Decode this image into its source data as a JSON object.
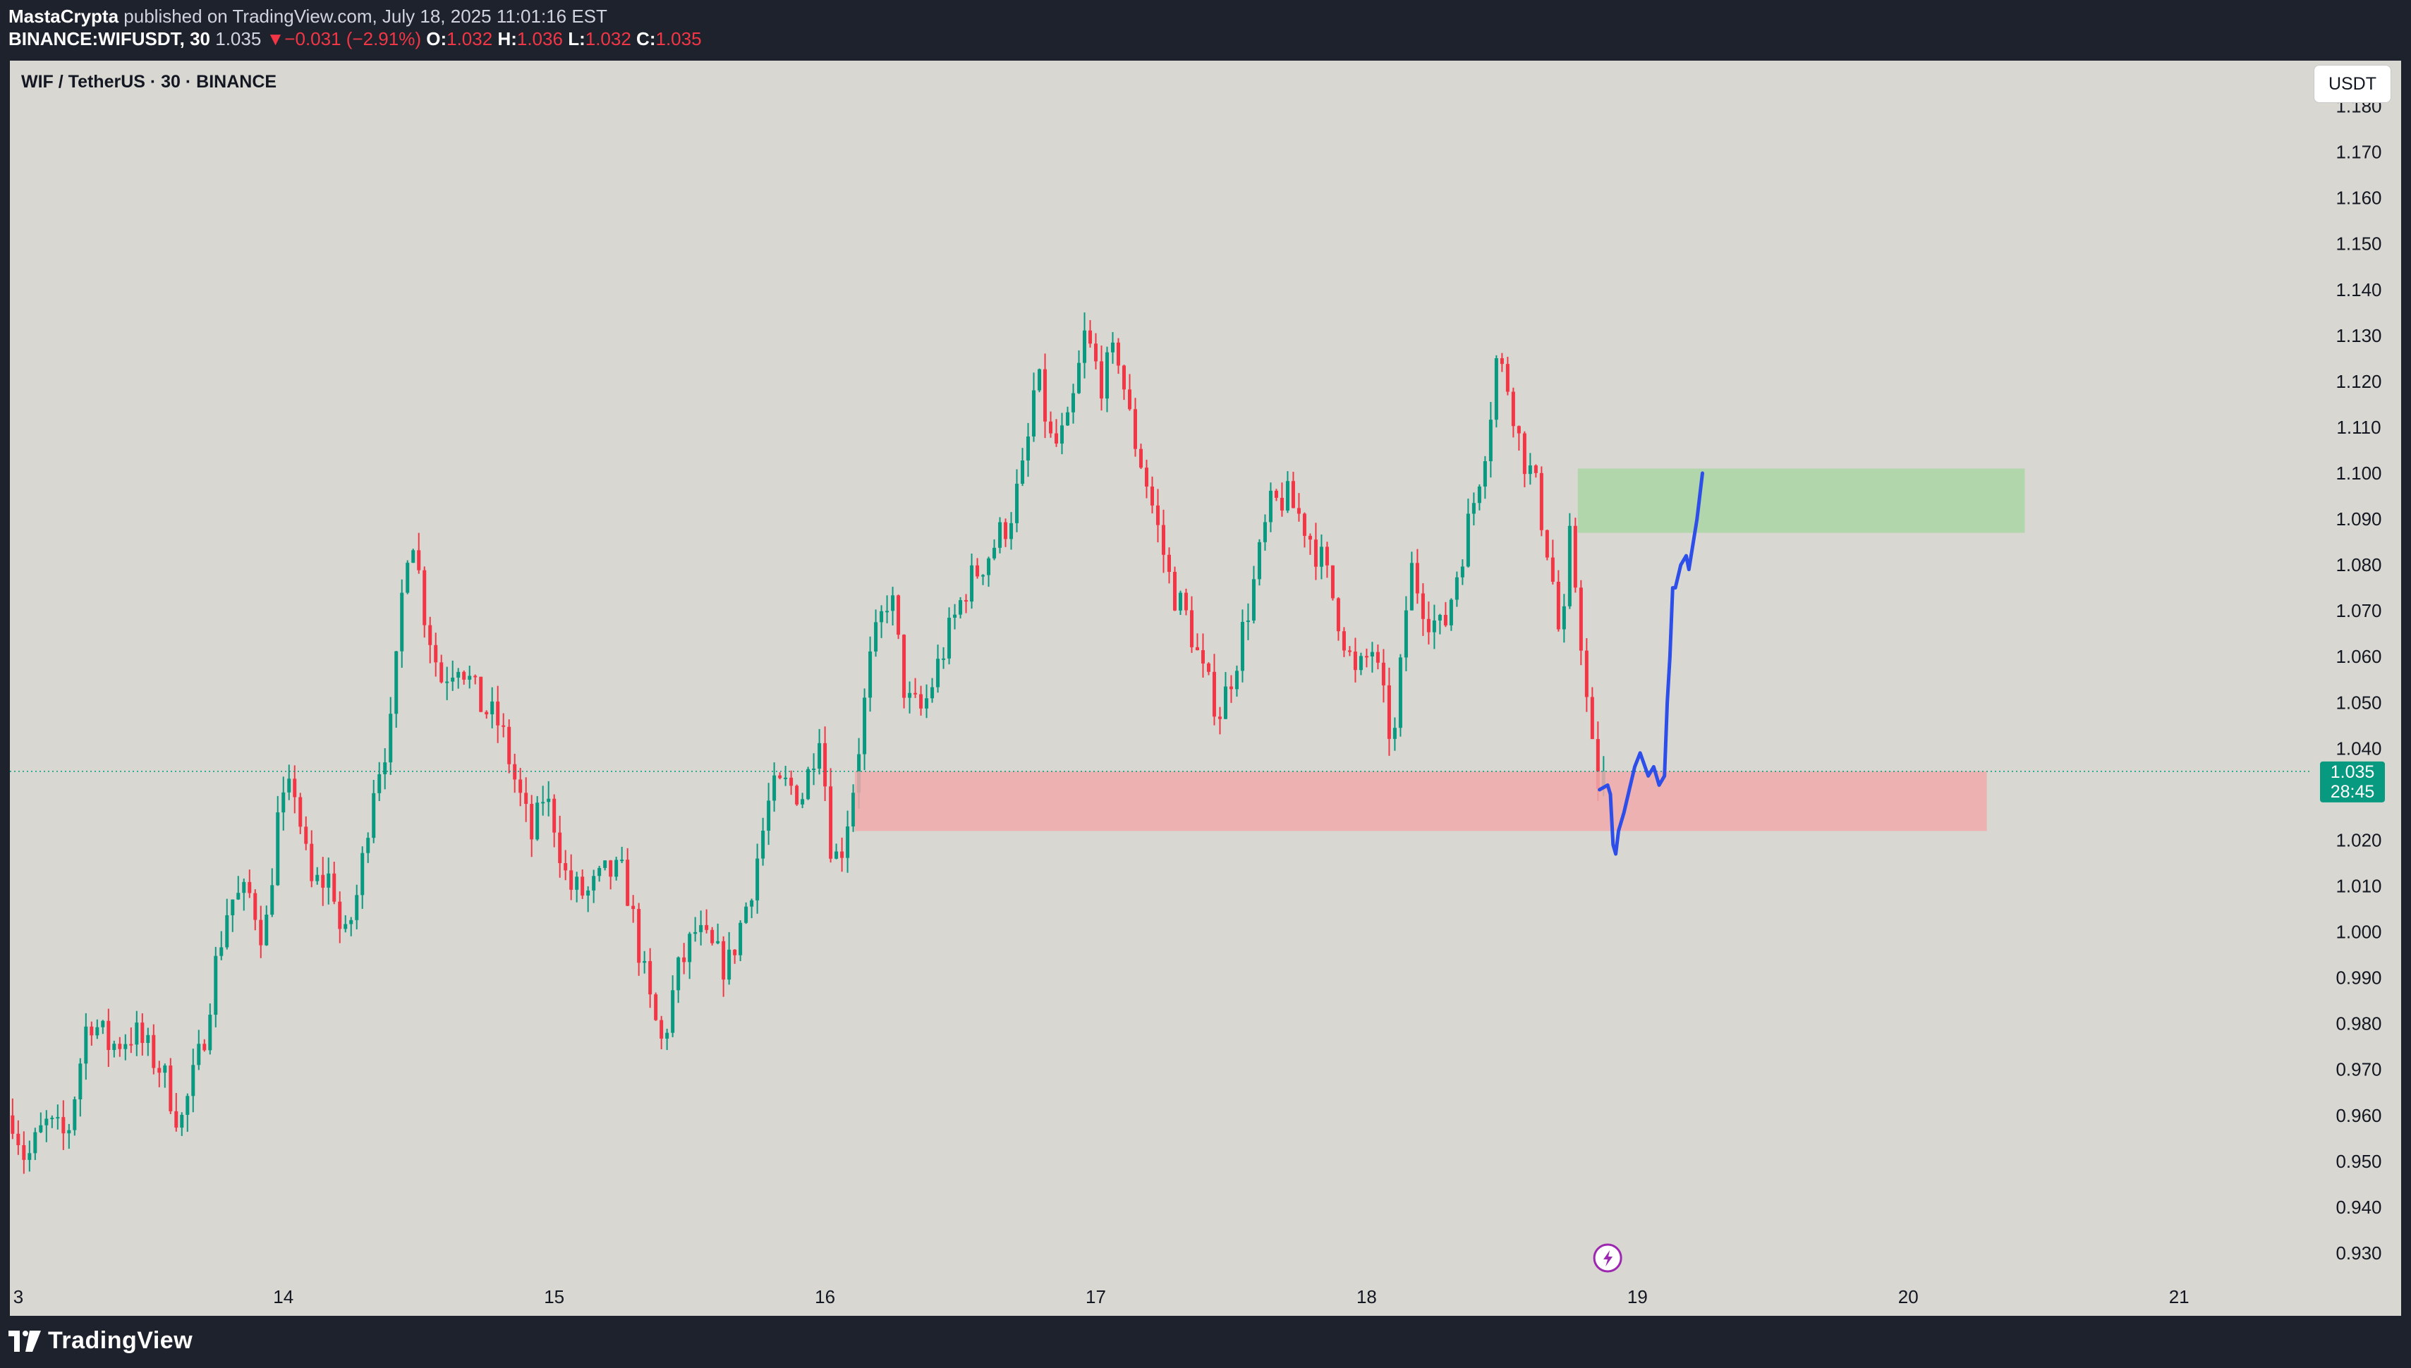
{
  "header": {
    "author": "MastaCrypta",
    "published_text": " published on TradingView.com, July 18, 2025 11:01:16 EST",
    "symbol": "BINANCE:WIFUSDT, 30",
    "last": "1.035",
    "change_arrow": "▼",
    "change": "−0.031 (−2.91%)",
    "o_label": "O:",
    "o_value": "1.032",
    "h_label": "H:",
    "h_value": "1.036",
    "l_label": "L:",
    "l_value": "1.032",
    "c_label": "C:",
    "c_value": "1.035"
  },
  "legend": {
    "title": "WIF / TetherUS · 30 · BINANCE"
  },
  "currency_button": "USDT",
  "price_label": {
    "price": "1.035",
    "countdown": "28:45"
  },
  "footer": {
    "brand": "TradingView",
    "logo_icon": "tradingview-logo-icon"
  },
  "colors": {
    "up": "#089981",
    "down": "#f23645",
    "background": "#d9d7d1",
    "projection": "#2d4ee8",
    "target_zone": "#a9d6a5",
    "support_zone": "#eeaaaa"
  },
  "chart_data": {
    "type": "candlestick",
    "interval": "30",
    "ylim": [
      0.924,
      1.189
    ],
    "y_ticks": [
      "1.180",
      "1.170",
      "1.160",
      "1.150",
      "1.140",
      "1.130",
      "1.120",
      "1.110",
      "1.100",
      "1.090",
      "1.080",
      "1.070",
      "1.060",
      "1.050",
      "1.040",
      "1.020",
      "1.010",
      "1.000",
      "0.990",
      "0.980",
      "0.970",
      "0.960",
      "0.950",
      "0.940",
      "0.930"
    ],
    "x_ticks": [
      {
        "label": "3",
        "day": 13
      },
      {
        "label": "14",
        "day": 14
      },
      {
        "label": "15",
        "day": 15
      },
      {
        "label": "16",
        "day": 16
      },
      {
        "label": "17",
        "day": 17
      },
      {
        "label": "18",
        "day": 18
      },
      {
        "label": "19",
        "day": 19
      },
      {
        "label": "20",
        "day": 20
      },
      {
        "label": "21",
        "day": 21
      }
    ],
    "xlim_days": [
      12.99,
      21.82
    ],
    "last_price": 1.035,
    "price_path": [
      [
        13.0,
        0.96
      ],
      [
        13.05,
        0.95
      ],
      [
        13.12,
        0.958
      ],
      [
        13.2,
        0.955
      ],
      [
        13.28,
        0.982
      ],
      [
        13.36,
        0.975
      ],
      [
        13.45,
        0.978
      ],
      [
        13.55,
        0.97
      ],
      [
        13.62,
        0.958
      ],
      [
        13.7,
        0.975
      ],
      [
        13.74,
        0.99
      ],
      [
        13.8,
        1.007
      ],
      [
        13.88,
        1.008
      ],
      [
        13.93,
        0.998
      ],
      [
        13.98,
        1.025
      ],
      [
        14.04,
        1.032
      ],
      [
        14.1,
        1.01
      ],
      [
        14.18,
        1.012
      ],
      [
        14.22,
        0.996
      ],
      [
        14.28,
        1.01
      ],
      [
        14.33,
        1.032
      ],
      [
        14.4,
        1.045
      ],
      [
        14.44,
        1.075
      ],
      [
        14.47,
        1.09
      ],
      [
        14.52,
        1.07
      ],
      [
        14.58,
        1.055
      ],
      [
        14.65,
        1.06
      ],
      [
        14.72,
        1.05
      ],
      [
        14.8,
        1.045
      ],
      [
        14.86,
        1.032
      ],
      [
        14.92,
        1.02
      ],
      [
        14.96,
        1.03
      ],
      [
        15.0,
        1.024
      ],
      [
        15.05,
        1.01
      ],
      [
        15.12,
        1.008
      ],
      [
        15.2,
        1.013
      ],
      [
        15.26,
        1.012
      ],
      [
        15.3,
        1.0
      ],
      [
        15.35,
        0.985
      ],
      [
        15.4,
        0.975
      ],
      [
        15.45,
        0.99
      ],
      [
        15.52,
        1.0
      ],
      [
        15.58,
        0.996
      ],
      [
        15.64,
        0.992
      ],
      [
        15.72,
        1.008
      ],
      [
        15.8,
        1.03
      ],
      [
        15.86,
        1.032
      ],
      [
        15.92,
        1.03
      ],
      [
        15.98,
        1.045
      ],
      [
        16.02,
        1.02
      ],
      [
        16.05,
        1.015
      ],
      [
        16.1,
        1.03
      ],
      [
        16.17,
        1.06
      ],
      [
        16.24,
        1.075
      ],
      [
        16.3,
        1.05
      ],
      [
        16.36,
        1.048
      ],
      [
        16.44,
        1.062
      ],
      [
        16.52,
        1.075
      ],
      [
        16.6,
        1.082
      ],
      [
        16.68,
        1.09
      ],
      [
        16.74,
        1.102
      ],
      [
        16.78,
        1.122
      ],
      [
        16.84,
        1.105
      ],
      [
        16.9,
        1.11
      ],
      [
        16.96,
        1.13
      ],
      [
        17.02,
        1.12
      ],
      [
        17.08,
        1.127
      ],
      [
        17.13,
        1.11
      ],
      [
        17.18,
        1.1
      ],
      [
        17.22,
        1.09
      ],
      [
        17.28,
        1.075
      ],
      [
        17.34,
        1.068
      ],
      [
        17.4,
        1.055
      ],
      [
        17.46,
        1.048
      ],
      [
        17.52,
        1.06
      ],
      [
        17.58,
        1.075
      ],
      [
        17.64,
        1.092
      ],
      [
        17.7,
        1.095
      ],
      [
        17.76,
        1.09
      ],
      [
        17.84,
        1.08
      ],
      [
        17.9,
        1.068
      ],
      [
        17.96,
        1.055
      ],
      [
        18.02,
        1.062
      ],
      [
        18.08,
        1.045
      ],
      [
        18.1,
        1.04
      ],
      [
        18.16,
        1.08
      ],
      [
        18.22,
        1.07
      ],
      [
        18.28,
        1.065
      ],
      [
        18.34,
        1.08
      ],
      [
        18.4,
        1.095
      ],
      [
        18.45,
        1.11
      ],
      [
        18.48,
        1.125
      ],
      [
        18.53,
        1.118
      ],
      [
        18.57,
        1.105
      ],
      [
        18.62,
        1.098
      ],
      [
        18.68,
        1.08
      ],
      [
        18.72,
        1.06
      ],
      [
        18.75,
        1.085
      ],
      [
        18.78,
        1.072
      ],
      [
        18.82,
        1.045
      ],
      [
        18.85,
        1.032
      ],
      [
        18.88,
        1.035
      ]
    ],
    "support_zone": {
      "x_start": 16.11,
      "x_end": 20.29,
      "y_bottom": 1.022,
      "y_top": 1.035
    },
    "target_zone": {
      "x_start": 18.78,
      "x_end": 20.43,
      "y_bottom": 1.087,
      "y_top": 1.101
    },
    "projection": [
      [
        18.86,
        1.031
      ],
      [
        18.89,
        1.032
      ],
      [
        18.9,
        1.03
      ],
      [
        18.91,
        1.019
      ],
      [
        18.92,
        1.017
      ],
      [
        18.93,
        1.022
      ],
      [
        18.95,
        1.026
      ],
      [
        18.97,
        1.031
      ],
      [
        18.99,
        1.036
      ],
      [
        19.01,
        1.039
      ],
      [
        19.04,
        1.034
      ],
      [
        19.06,
        1.036
      ],
      [
        19.08,
        1.032
      ],
      [
        19.1,
        1.034
      ],
      [
        19.11,
        1.05
      ],
      [
        19.12,
        1.06
      ],
      [
        19.13,
        1.075
      ],
      [
        19.14,
        1.075
      ],
      [
        19.16,
        1.08
      ],
      [
        19.18,
        1.082
      ],
      [
        19.19,
        1.079
      ],
      [
        19.22,
        1.09
      ],
      [
        19.24,
        1.1
      ]
    ]
  }
}
